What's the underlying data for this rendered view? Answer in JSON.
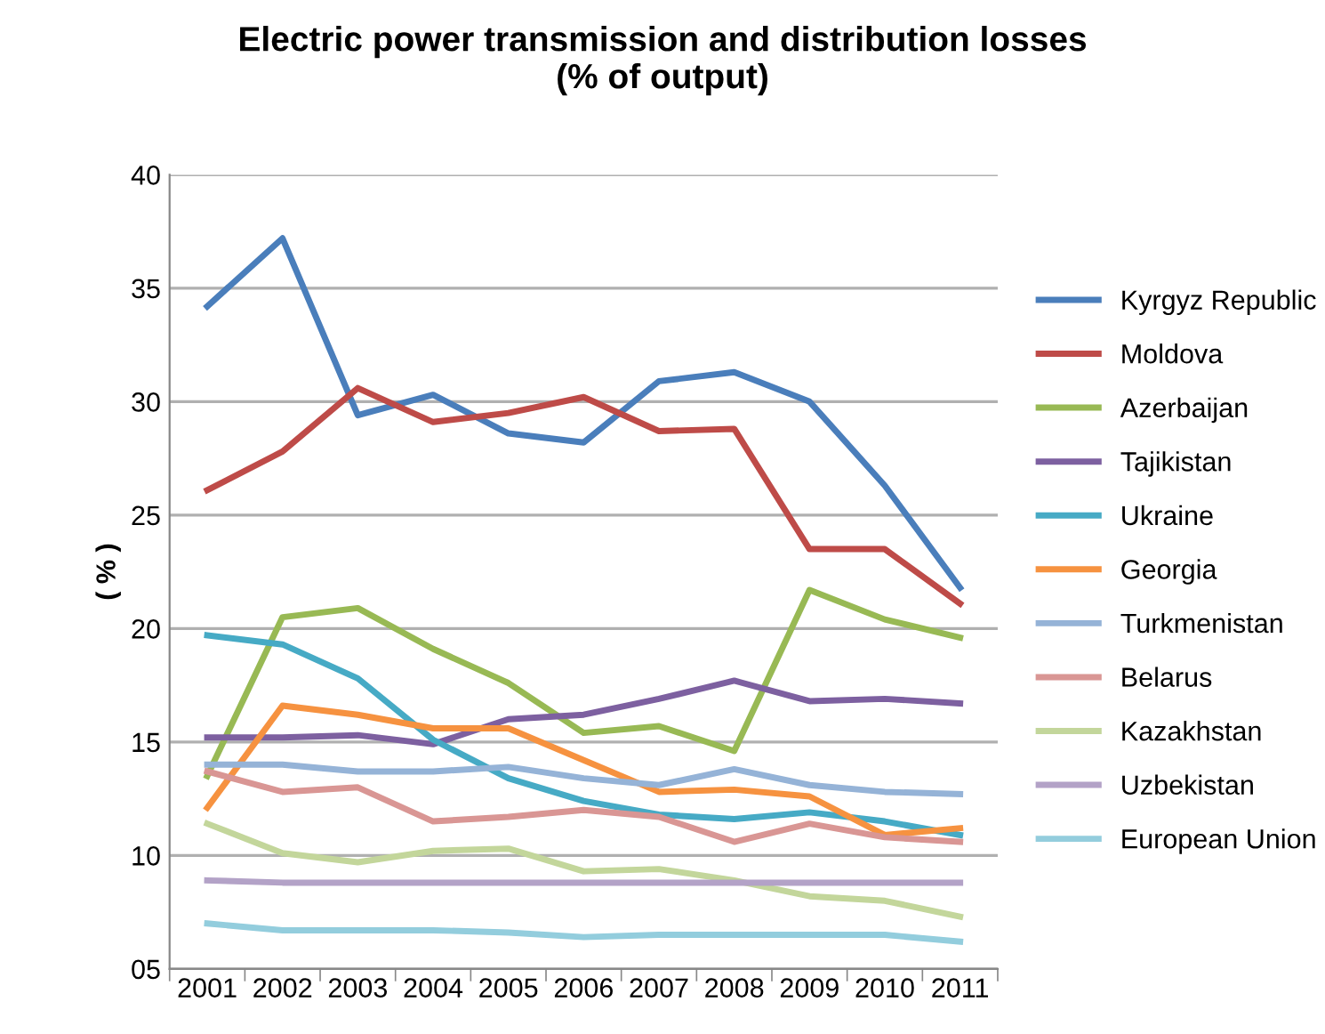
{
  "chart_data": {
    "type": "line",
    "title": "Electric power transmission and distribution losses\n(% of output)",
    "ylabel": "( % )",
    "categories": [
      "2001",
      "2002",
      "2003",
      "2004",
      "2005",
      "2006",
      "2007",
      "2008",
      "2009",
      "2010",
      "2011"
    ],
    "ylim": [
      5,
      40
    ],
    "yticks": [
      {
        "value": 5,
        "label": "05"
      },
      10,
      15,
      20,
      25,
      30,
      35,
      40
    ],
    "grid": "y",
    "legend": "right",
    "marker": "none",
    "line_style": "solid",
    "series": [
      {
        "name": "Kyrgyz Republic",
        "color": "#4a7ebb",
        "values": [
          34.2,
          37.2,
          29.4,
          30.3,
          28.6,
          28.2,
          30.9,
          31.3,
          30.0,
          26.3,
          21.8
        ]
      },
      {
        "name": "Moldova",
        "color": "#be4b48",
        "values": [
          26.1,
          27.8,
          30.6,
          29.1,
          29.5,
          30.2,
          28.7,
          28.8,
          23.5,
          23.5,
          21.1
        ]
      },
      {
        "name": "Azerbaijan",
        "color": "#98b954",
        "values": [
          13.5,
          20.5,
          20.9,
          19.1,
          17.6,
          15.4,
          15.7,
          14.6,
          21.7,
          20.4,
          19.6
        ]
      },
      {
        "name": "Tajikistan",
        "color": "#7d60a0",
        "values": [
          15.2,
          15.2,
          15.3,
          14.9,
          16.0,
          16.2,
          16.9,
          17.7,
          16.8,
          16.9,
          16.7
        ]
      },
      {
        "name": "Ukraine",
        "color": "#46aac5",
        "values": [
          19.7,
          19.3,
          17.8,
          15.1,
          13.4,
          12.4,
          11.8,
          11.6,
          11.9,
          11.5,
          10.9
        ]
      },
      {
        "name": "Georgia",
        "color": "#f69240",
        "values": [
          12.1,
          16.6,
          16.2,
          15.6,
          15.6,
          14.2,
          12.8,
          12.9,
          12.6,
          10.9,
          11.2
        ]
      },
      {
        "name": "Turkmenistan",
        "color": "#95b3d7",
        "values": [
          14.0,
          14.0,
          13.7,
          13.7,
          13.9,
          13.4,
          13.1,
          13.8,
          13.1,
          12.8,
          12.7
        ]
      },
      {
        "name": "Belarus",
        "color": "#d99694",
        "values": [
          13.7,
          12.8,
          13.0,
          11.5,
          11.7,
          12.0,
          11.7,
          10.6,
          11.4,
          10.8,
          10.6
        ]
      },
      {
        "name": "Kazakhstan",
        "color": "#c3d69b",
        "values": [
          11.4,
          10.1,
          9.7,
          10.2,
          10.3,
          9.3,
          9.4,
          8.9,
          8.2,
          8.0,
          7.3
        ]
      },
      {
        "name": "Uzbekistan",
        "color": "#b3a2c7",
        "values": [
          8.9,
          8.8,
          8.8,
          8.8,
          8.8,
          8.8,
          8.8,
          8.8,
          8.8,
          8.8,
          8.8
        ]
      },
      {
        "name": "European Union",
        "color": "#93cddd",
        "values": [
          7.0,
          6.7,
          6.7,
          6.7,
          6.6,
          6.4,
          6.5,
          6.5,
          6.5,
          6.5,
          6.2
        ]
      }
    ]
  }
}
